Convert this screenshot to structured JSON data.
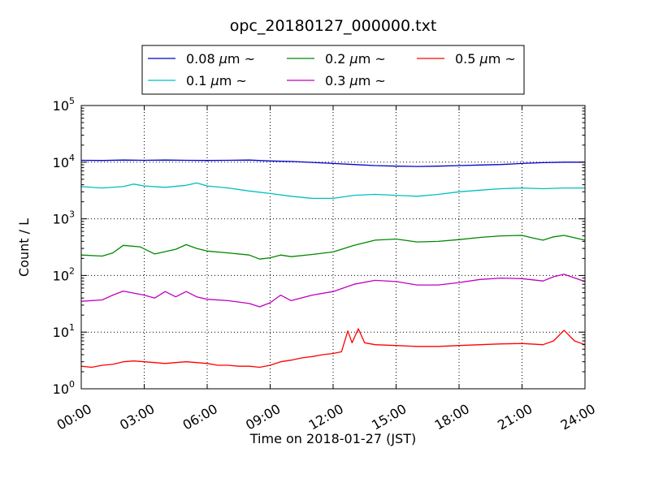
{
  "chart_data": {
    "type": "line",
    "title": "opc_20180127_000000.txt",
    "xlabel": "Time on 2018-01-27 (JST)",
    "ylabel": "Count / L",
    "x_unit": "hours",
    "xlim": [
      0,
      24
    ],
    "ylim": [
      1,
      100000
    ],
    "yscale": "log",
    "grid": true,
    "legend_position": "top-center",
    "x_ticks": [
      {
        "value": 0,
        "label": "00:00"
      },
      {
        "value": 3,
        "label": "03:00"
      },
      {
        "value": 6,
        "label": "06:00"
      },
      {
        "value": 9,
        "label": "09:00"
      },
      {
        "value": 12,
        "label": "12:00"
      },
      {
        "value": 15,
        "label": "15:00"
      },
      {
        "value": 18,
        "label": "18:00"
      },
      {
        "value": 21,
        "label": "21:00"
      },
      {
        "value": 24,
        "label": "24:00"
      }
    ],
    "y_ticks": [
      {
        "value": 1,
        "base": "10",
        "exp": "0"
      },
      {
        "value": 10,
        "base": "10",
        "exp": "1"
      },
      {
        "value": 100,
        "base": "10",
        "exp": "2"
      },
      {
        "value": 1000,
        "base": "10",
        "exp": "3"
      },
      {
        "value": 10000,
        "base": "10",
        "exp": "4"
      },
      {
        "value": 100000,
        "base": "10",
        "exp": "5"
      }
    ],
    "series": [
      {
        "name": "0.08 μm ~",
        "label_prefix": "0.08 ",
        "label_mu": "μ",
        "label_suffix": "m ~",
        "color": "#0000cc",
        "x": [
          0,
          1,
          2,
          3,
          4,
          5,
          6,
          7,
          8,
          9,
          10,
          11,
          12,
          13,
          14,
          15,
          16,
          17,
          18,
          19,
          20,
          21,
          22,
          23,
          24
        ],
        "y": [
          10800,
          10700,
          10900,
          10800,
          10900,
          10800,
          10700,
          10800,
          10900,
          10500,
          10300,
          9900,
          9500,
          9100,
          8700,
          8500,
          8400,
          8500,
          8700,
          8900,
          9100,
          9500,
          9800,
          10000,
          10000
        ]
      },
      {
        "name": "0.1 μm ~",
        "label_prefix": "0.1 ",
        "label_mu": "μ",
        "label_suffix": "m ~",
        "color": "#00bfbf",
        "x": [
          0,
          1,
          2,
          2.5,
          3,
          4,
          5,
          5.5,
          6,
          7,
          8,
          9,
          10,
          11,
          12,
          13,
          14,
          15,
          16,
          17,
          18,
          19,
          20,
          21,
          22,
          23,
          24
        ],
        "y": [
          3700,
          3500,
          3700,
          4100,
          3800,
          3600,
          3900,
          4300,
          3800,
          3500,
          3100,
          2800,
          2500,
          2300,
          2300,
          2600,
          2700,
          2600,
          2500,
          2700,
          3000,
          3200,
          3400,
          3500,
          3400,
          3500,
          3500
        ]
      },
      {
        "name": "0.2 μm ~",
        "label_prefix": "0.2 ",
        "label_mu": "μ",
        "label_suffix": "m ~",
        "color": "#008800",
        "x": [
          0,
          1,
          1.5,
          2,
          2.8,
          3.5,
          4.5,
          5,
          5.5,
          6,
          7,
          8,
          8.5,
          9,
          9.5,
          10,
          11,
          12,
          13,
          14,
          15,
          16,
          17,
          18,
          19,
          20,
          21,
          21.5,
          22,
          22.5,
          23,
          24
        ],
        "y": [
          230,
          220,
          250,
          340,
          320,
          240,
          290,
          350,
          300,
          270,
          250,
          230,
          195,
          205,
          230,
          215,
          235,
          260,
          340,
          420,
          440,
          390,
          400,
          430,
          470,
          500,
          510,
          460,
          420,
          480,
          510,
          420
        ]
      },
      {
        "name": "0.3 μm ~",
        "label_prefix": "0.3 ",
        "label_mu": "μ",
        "label_suffix": "m ~",
        "color": "#bf00bf",
        "x": [
          0,
          1,
          1.5,
          2,
          3,
          3.5,
          4,
          4.5,
          5,
          5.5,
          6,
          7,
          8,
          8.5,
          9,
          9.5,
          10,
          11,
          12,
          13,
          14,
          15,
          16,
          17,
          18,
          19,
          20,
          21,
          22,
          22.5,
          23,
          24
        ],
        "y": [
          35,
          37,
          45,
          53,
          45,
          40,
          52,
          42,
          52,
          42,
          38,
          36,
          32,
          28,
          33,
          45,
          36,
          45,
          52,
          70,
          82,
          78,
          68,
          68,
          75,
          85,
          90,
          88,
          80,
          95,
          105,
          78
        ]
      },
      {
        "name": "0.5 μm ~",
        "label_prefix": "0.5 ",
        "label_mu": "μ",
        "label_suffix": "m ~",
        "color": "#ff0000",
        "x": [
          0,
          0.5,
          1,
          1.5,
          2,
          2.5,
          3,
          3.5,
          4,
          4.5,
          5,
          5.5,
          6,
          6.5,
          7,
          7.5,
          8,
          8.5,
          9,
          9.5,
          10,
          10.5,
          11,
          11.5,
          12,
          12.4,
          12.7,
          12.9,
          13.2,
          13.5,
          14,
          15,
          16,
          17,
          18,
          19,
          20,
          21,
          22,
          22.5,
          23,
          23.5,
          24
        ],
        "y": [
          2.5,
          2.4,
          2.6,
          2.7,
          3.0,
          3.1,
          3.0,
          2.9,
          2.8,
          2.9,
          3.0,
          2.9,
          2.8,
          2.6,
          2.6,
          2.5,
          2.5,
          2.4,
          2.6,
          3.0,
          3.2,
          3.5,
          3.7,
          4.0,
          4.2,
          4.5,
          10.5,
          6.5,
          11.5,
          6.5,
          6.0,
          5.8,
          5.6,
          5.6,
          5.8,
          6.0,
          6.2,
          6.3,
          6.0,
          7.0,
          10.8,
          7.0,
          6.0
        ]
      }
    ]
  }
}
